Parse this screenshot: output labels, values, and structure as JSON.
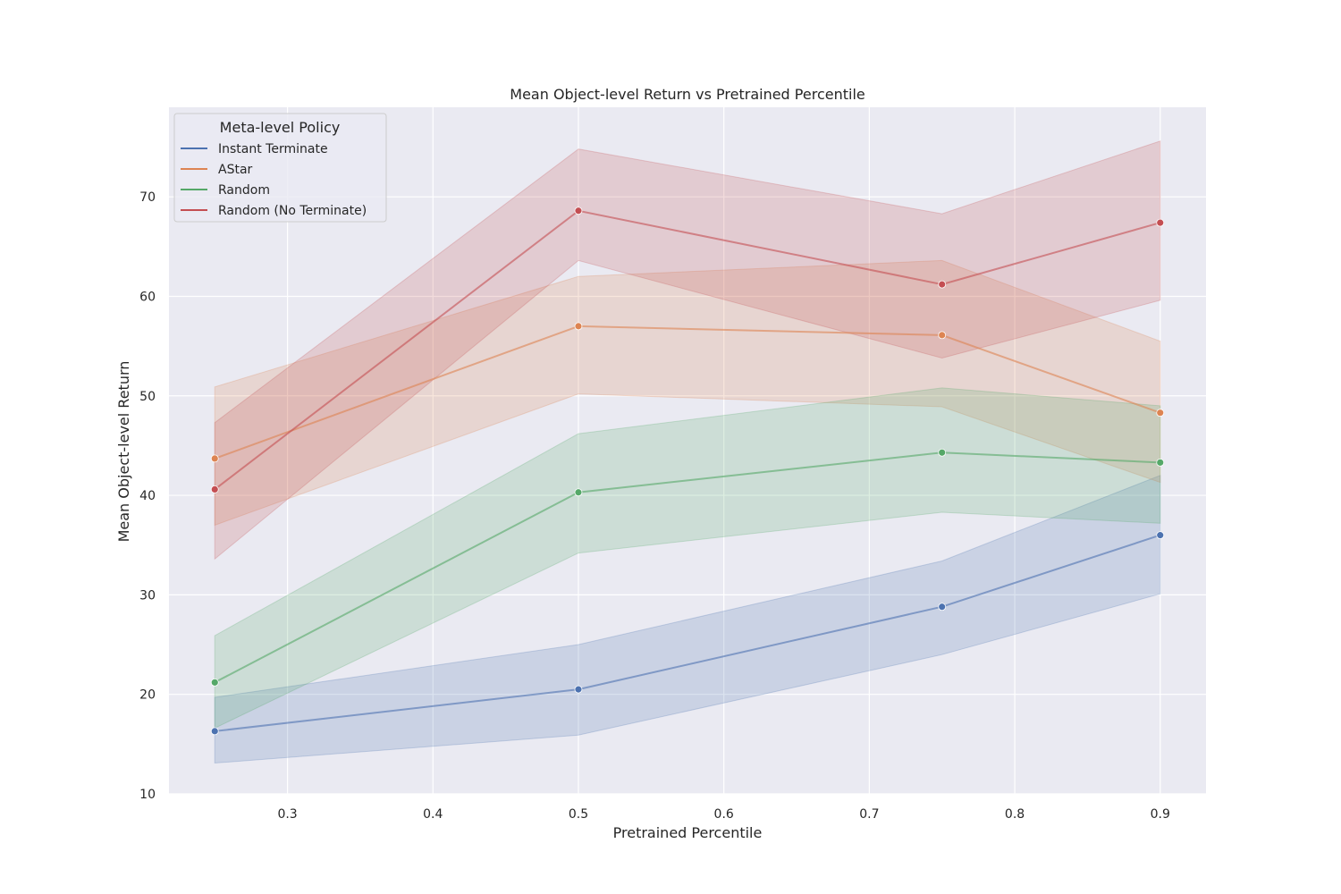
{
  "chart_data": {
    "type": "line",
    "title": "Mean Object-level Return vs Pretrained Percentile",
    "xlabel": "Pretrained Percentile",
    "ylabel": "Mean Object-level Return",
    "xlim": [
      0.2185,
      0.9315
    ],
    "ylim": [
      10,
      79
    ],
    "xticks": [
      0.3,
      0.4,
      0.5,
      0.6,
      0.7,
      0.8,
      0.9
    ],
    "xtick_labels": [
      "0.3",
      "0.4",
      "0.5",
      "0.6",
      "0.7",
      "0.8",
      "0.9"
    ],
    "yticks": [
      10,
      20,
      30,
      40,
      50,
      60,
      70
    ],
    "ytick_labels": [
      "10",
      "20",
      "30",
      "40",
      "50",
      "60",
      "70"
    ],
    "grid": true,
    "legend": {
      "title": "Meta-level Policy",
      "placement": "top-left"
    },
    "x": [
      0.25,
      0.5,
      0.75,
      0.9
    ],
    "series": [
      {
        "name": "Instant Terminate",
        "color": "#4c72b0",
        "values": [
          16.3,
          20.5,
          28.8,
          36.0
        ],
        "ci_low": [
          13.1,
          15.9,
          24.0,
          30.1
        ],
        "ci_high": [
          19.7,
          25.0,
          33.4,
          42.0
        ]
      },
      {
        "name": "AStar",
        "color": "#dd8452",
        "values": [
          43.7,
          57.0,
          56.1,
          48.3
        ],
        "ci_low": [
          37.0,
          50.2,
          48.9,
          41.3
        ],
        "ci_high": [
          50.9,
          62.0,
          63.6,
          55.5
        ]
      },
      {
        "name": "Random",
        "color": "#55a868",
        "values": [
          21.2,
          40.3,
          44.3,
          43.3
        ],
        "ci_low": [
          16.6,
          34.2,
          38.3,
          37.2
        ],
        "ci_high": [
          25.9,
          46.2,
          50.8,
          49.0
        ]
      },
      {
        "name": "Random (No Terminate)",
        "color": "#c44e52",
        "values": [
          40.6,
          68.6,
          61.2,
          67.4
        ],
        "ci_low": [
          33.6,
          63.6,
          53.8,
          59.6
        ],
        "ci_high": [
          47.3,
          74.8,
          68.3,
          75.6
        ]
      }
    ]
  }
}
